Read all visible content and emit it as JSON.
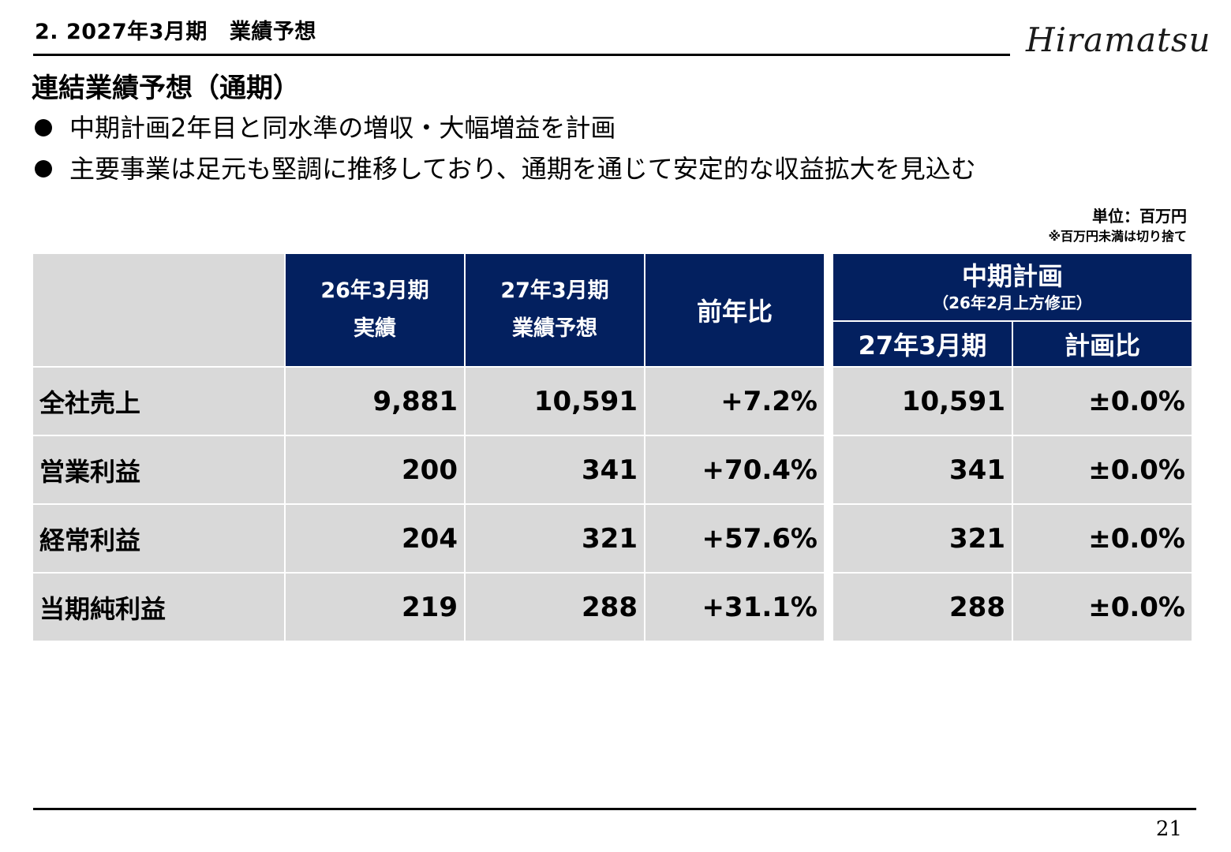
{
  "header": {
    "section_number": "2.",
    "section_period": "2027年3月期",
    "section_title": "業績予想",
    "logo_text": "Hiramatsu"
  },
  "page_title": "連結業績予想（通期）",
  "bullets": [
    "中期計画2年目と同水準の増収・大幅増益を計画",
    "主要事業は足元も堅調に推移しており、通期を通じて安定的な収益拡大を見込む"
  ],
  "unit_note": {
    "unit": "単位：百万円",
    "rounding": "※百万円未満は切り捨て"
  },
  "table": {
    "headers": {
      "fy26_actual": [
        "26年3月期",
        "実績"
      ],
      "fy27_forecast": [
        "27年3月期",
        "業績予想"
      ],
      "yoy": "前年比",
      "plan_group": "中期計画",
      "plan_note": "（26年2月上方修正）",
      "plan_fy27": "27年3月期",
      "plan_ratio": "計画比"
    },
    "rows": [
      {
        "label": "全社売上",
        "fy26": "9,881",
        "fy27": "10,591",
        "yoy": "+7.2%",
        "plan": "10,591",
        "vs_plan": "±0.0%"
      },
      {
        "label": "営業利益",
        "fy26": "200",
        "fy27": "341",
        "yoy": "+70.4%",
        "plan": "341",
        "vs_plan": "±0.0%"
      },
      {
        "label": "経常利益",
        "fy26": "204",
        "fy27": "321",
        "yoy": "+57.6%",
        "plan": "321",
        "vs_plan": "±0.0%"
      },
      {
        "label": "当期純利益",
        "fy26": "219",
        "fy27": "288",
        "yoy": "+31.1%",
        "plan": "288",
        "vs_plan": "±0.0%"
      }
    ]
  },
  "page_number": "21",
  "colors": {
    "header_fill": "#03205f",
    "body_fill": "#d9d9d9",
    "text": "#000000"
  }
}
